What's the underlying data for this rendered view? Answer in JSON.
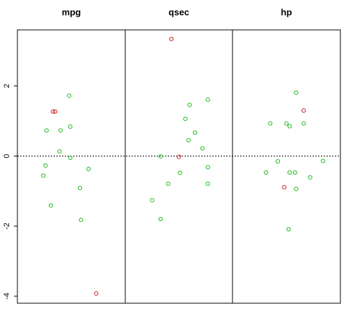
{
  "chart_data": {
    "type": "scatter",
    "panels": [
      "mpg",
      "qsec",
      "hp"
    ],
    "ylim": [
      -4.2,
      3.6
    ],
    "yticks": [
      2,
      0,
      -2,
      -4
    ],
    "ytick_labels": [
      "2",
      "0",
      "-2",
      "-4"
    ],
    "reference_line": {
      "y": 0,
      "style": "dotted"
    },
    "grid": false,
    "colors": {
      "normal": "#22bb22",
      "outlier": "#cc2222",
      "axis": "#000000"
    },
    "points": {
      "mpg": [
        {
          "x": 0.33,
          "y": 1.27,
          "outlier": true
        },
        {
          "x": 0.35,
          "y": 1.27,
          "outlier": true
        },
        {
          "x": 0.48,
          "y": 1.72,
          "outlier": false
        },
        {
          "x": 0.27,
          "y": 0.73,
          "outlier": false
        },
        {
          "x": 0.4,
          "y": 0.73,
          "outlier": false
        },
        {
          "x": 0.49,
          "y": 0.84,
          "outlier": false
        },
        {
          "x": 0.39,
          "y": 0.13,
          "outlier": false
        },
        {
          "x": 0.49,
          "y": -0.05,
          "outlier": false
        },
        {
          "x": 0.26,
          "y": -0.27,
          "outlier": false
        },
        {
          "x": 0.24,
          "y": -0.56,
          "outlier": false
        },
        {
          "x": 0.66,
          "y": -0.37,
          "outlier": false
        },
        {
          "x": 0.58,
          "y": -0.91,
          "outlier": false
        },
        {
          "x": 0.31,
          "y": -1.41,
          "outlier": false
        },
        {
          "x": 0.59,
          "y": -1.82,
          "outlier": false
        },
        {
          "x": 0.73,
          "y": -3.92,
          "outlier": true
        }
      ],
      "qsec": [
        {
          "x": 0.43,
          "y": 3.34,
          "outlier": true
        },
        {
          "x": 0.77,
          "y": 1.61,
          "outlier": false
        },
        {
          "x": 0.6,
          "y": 1.46,
          "outlier": false
        },
        {
          "x": 0.56,
          "y": 1.06,
          "outlier": false
        },
        {
          "x": 0.65,
          "y": 0.67,
          "outlier": false
        },
        {
          "x": 0.59,
          "y": 0.45,
          "outlier": false
        },
        {
          "x": 0.72,
          "y": 0.22,
          "outlier": false
        },
        {
          "x": 0.33,
          "y": -0.01,
          "outlier": false
        },
        {
          "x": 0.5,
          "y": -0.02,
          "outlier": true
        },
        {
          "x": 0.77,
          "y": -0.32,
          "outlier": false
        },
        {
          "x": 0.51,
          "y": -0.48,
          "outlier": false
        },
        {
          "x": 0.4,
          "y": -0.79,
          "outlier": false
        },
        {
          "x": 0.77,
          "y": -0.79,
          "outlier": false
        },
        {
          "x": 0.25,
          "y": -1.26,
          "outlier": false
        },
        {
          "x": 0.33,
          "y": -1.8,
          "outlier": false
        }
      ],
      "hp": [
        {
          "x": 0.59,
          "y": 1.81,
          "outlier": false
        },
        {
          "x": 0.66,
          "y": 1.3,
          "outlier": true
        },
        {
          "x": 0.35,
          "y": 0.93,
          "outlier": false
        },
        {
          "x": 0.5,
          "y": 0.93,
          "outlier": false
        },
        {
          "x": 0.53,
          "y": 0.85,
          "outlier": false
        },
        {
          "x": 0.66,
          "y": 0.93,
          "outlier": false
        },
        {
          "x": 0.84,
          "y": -0.14,
          "outlier": false
        },
        {
          "x": 0.42,
          "y": -0.15,
          "outlier": false
        },
        {
          "x": 0.31,
          "y": -0.47,
          "outlier": false
        },
        {
          "x": 0.53,
          "y": -0.47,
          "outlier": false
        },
        {
          "x": 0.58,
          "y": -0.47,
          "outlier": false
        },
        {
          "x": 0.72,
          "y": -0.61,
          "outlier": false
        },
        {
          "x": 0.48,
          "y": -0.89,
          "outlier": true
        },
        {
          "x": 0.59,
          "y": -0.94,
          "outlier": false
        },
        {
          "x": 0.52,
          "y": -2.09,
          "outlier": false
        }
      ]
    }
  }
}
